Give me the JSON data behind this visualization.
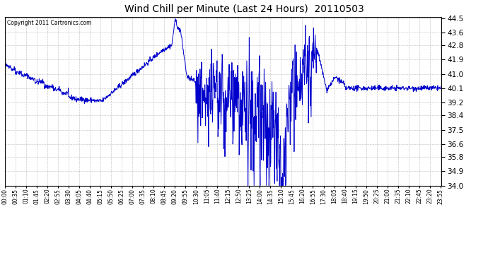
{
  "title": "Wind Chill per Minute (Last 24 Hours)  20110503",
  "copyright": "Copyright 2011 Cartronics.com",
  "line_color": "#0000cc",
  "background_color": "#ffffff",
  "plot_bg_color": "#ffffff",
  "ylim": [
    34.0,
    44.55
  ],
  "yticks": [
    34.0,
    34.9,
    35.8,
    36.6,
    37.5,
    38.4,
    39.2,
    40.1,
    41.0,
    41.9,
    42.8,
    43.6,
    44.5
  ],
  "total_minutes": 1440,
  "grid_color": "#bbbbbb",
  "grid_style": "--",
  "grid_alpha": 0.8,
  "tick_step": 35
}
